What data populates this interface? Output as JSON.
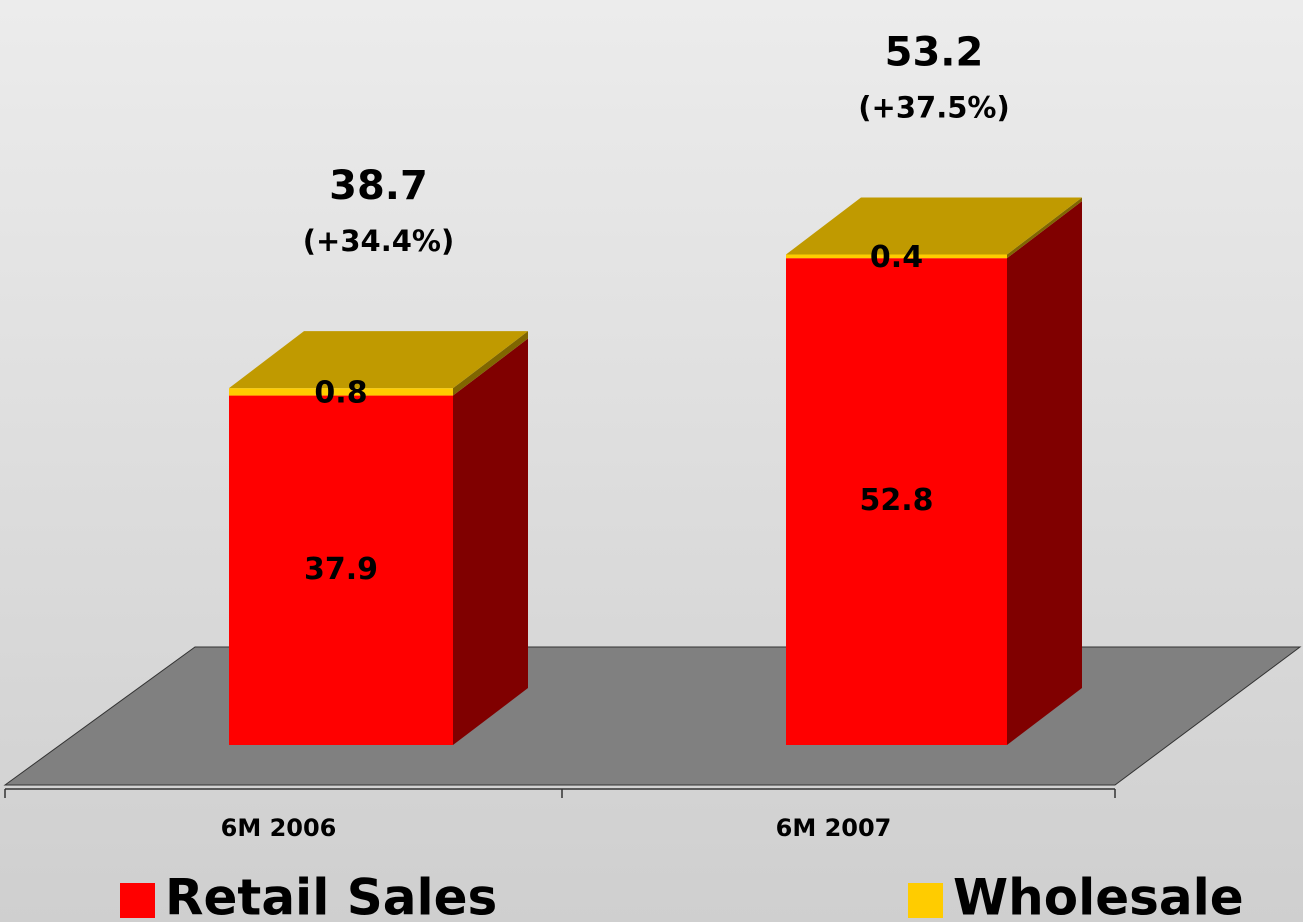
{
  "chart_data": {
    "type": "bar3d_stacked",
    "categories": [
      "6M 2006",
      "6M 2007"
    ],
    "series": [
      {
        "name": "Retail Sales",
        "color": "#ff0000",
        "values": [
          37.9,
          52.8
        ]
      },
      {
        "name": "Wholesale",
        "color": "#ffcc00",
        "values": [
          0.8,
          0.4
        ]
      }
    ],
    "totals": {
      "values": [
        38.7,
        53.2
      ]
    },
    "growth": {
      "values": [
        34.4,
        37.5
      ],
      "value_labels": [
        "(+34.4%)",
        "(+37.5%)"
      ]
    },
    "legend": "bottom"
  }
}
